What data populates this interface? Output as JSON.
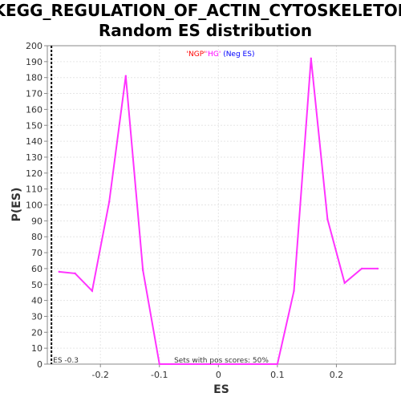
{
  "chart_data": {
    "type": "line",
    "title_line1": "KEGG_REGULATION_OF_ACTIN_CYTOSKELETON:",
    "title_line2": "Random ES distribution",
    "xlabel": "ES",
    "ylabel": "P(ES)",
    "xlim": [
      -0.29,
      0.3
    ],
    "ylim": [
      0,
      200
    ],
    "x_ticks": [
      -0.2,
      -0.1,
      0,
      0.1,
      0.2
    ],
    "x_tick_labels": [
      "-0.2",
      "-0.1",
      "0",
      "0.1",
      "0.2"
    ],
    "y_ticks": [
      0,
      10,
      20,
      30,
      40,
      50,
      60,
      70,
      80,
      90,
      100,
      110,
      120,
      130,
      140,
      150,
      160,
      170,
      180,
      190,
      200
    ],
    "grid": true,
    "legend": {
      "part1": "'NGP'",
      "part2": "'HG'",
      "part3": " (Neg ES)",
      "part1_color": "#ff0000",
      "part2_color": "#ff00ff",
      "part3_color": "#0000ff"
    },
    "es_marker": {
      "x": -0.283,
      "label": "ES -0.3"
    },
    "annotation": "Sets with pos scores: 50%",
    "series": [
      {
        "color": "#ff33ff",
        "x": [
          -0.27,
          -0.243,
          -0.214,
          -0.185,
          -0.157,
          -0.128,
          -0.1,
          0.1,
          0.128,
          0.157,
          0.185,
          0.214,
          0.243,
          0.27
        ],
        "y": [
          58,
          57,
          46,
          102,
          181,
          59,
          0,
          0,
          46,
          192,
          91,
          51,
          60,
          60
        ]
      }
    ]
  }
}
